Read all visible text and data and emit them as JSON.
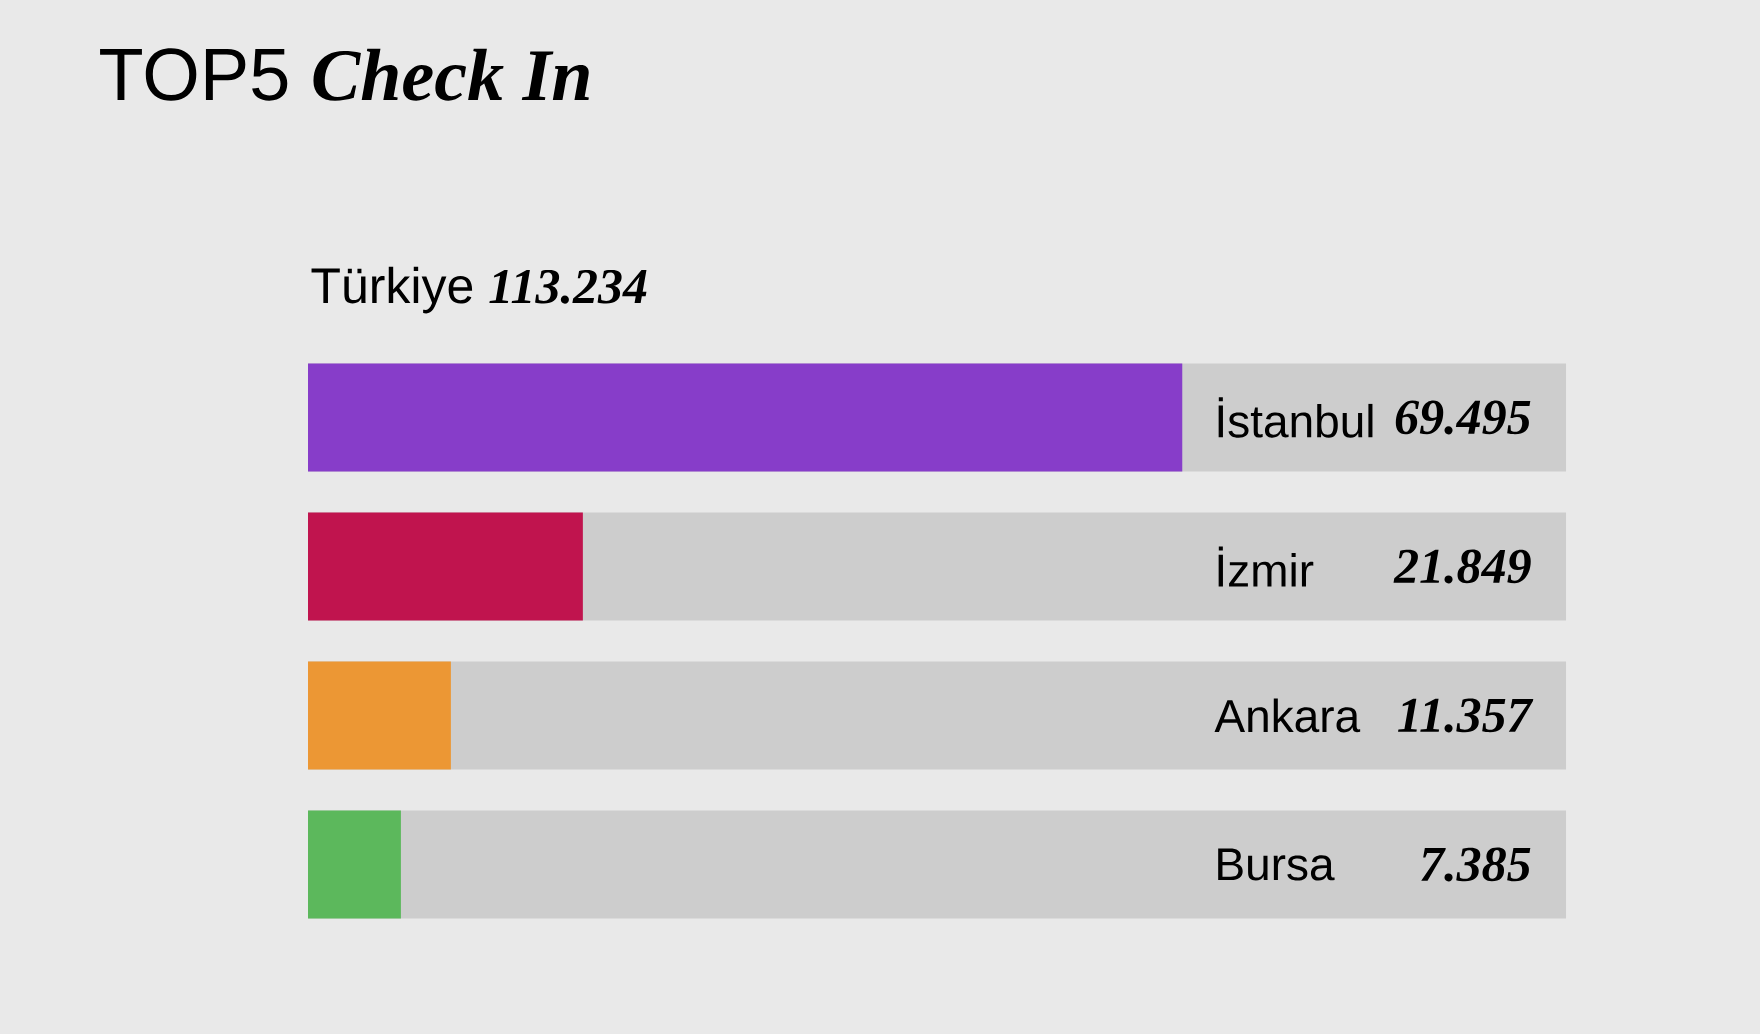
{
  "chart_data": {
    "type": "bar",
    "orientation": "horizontal",
    "title": "TOP5 **Check In**",
    "subtitle": "Türkiye **113.234**",
    "categories": [
      "İstanbul",
      "İzmir",
      "Ankara",
      "Bursa"
    ],
    "values": [
      69.495,
      21.849,
      11.357,
      7.385
    ],
    "value_labels": [
      "69.495",
      "21.849",
      "11.357",
      "7.385"
    ],
    "colors": [
      "#873dc9",
      "#c0144e",
      "#ec9734",
      "#5cb85c"
    ],
    "xlim": [
      0,
      100
    ],
    "tick_labels": "y"
  }
}
